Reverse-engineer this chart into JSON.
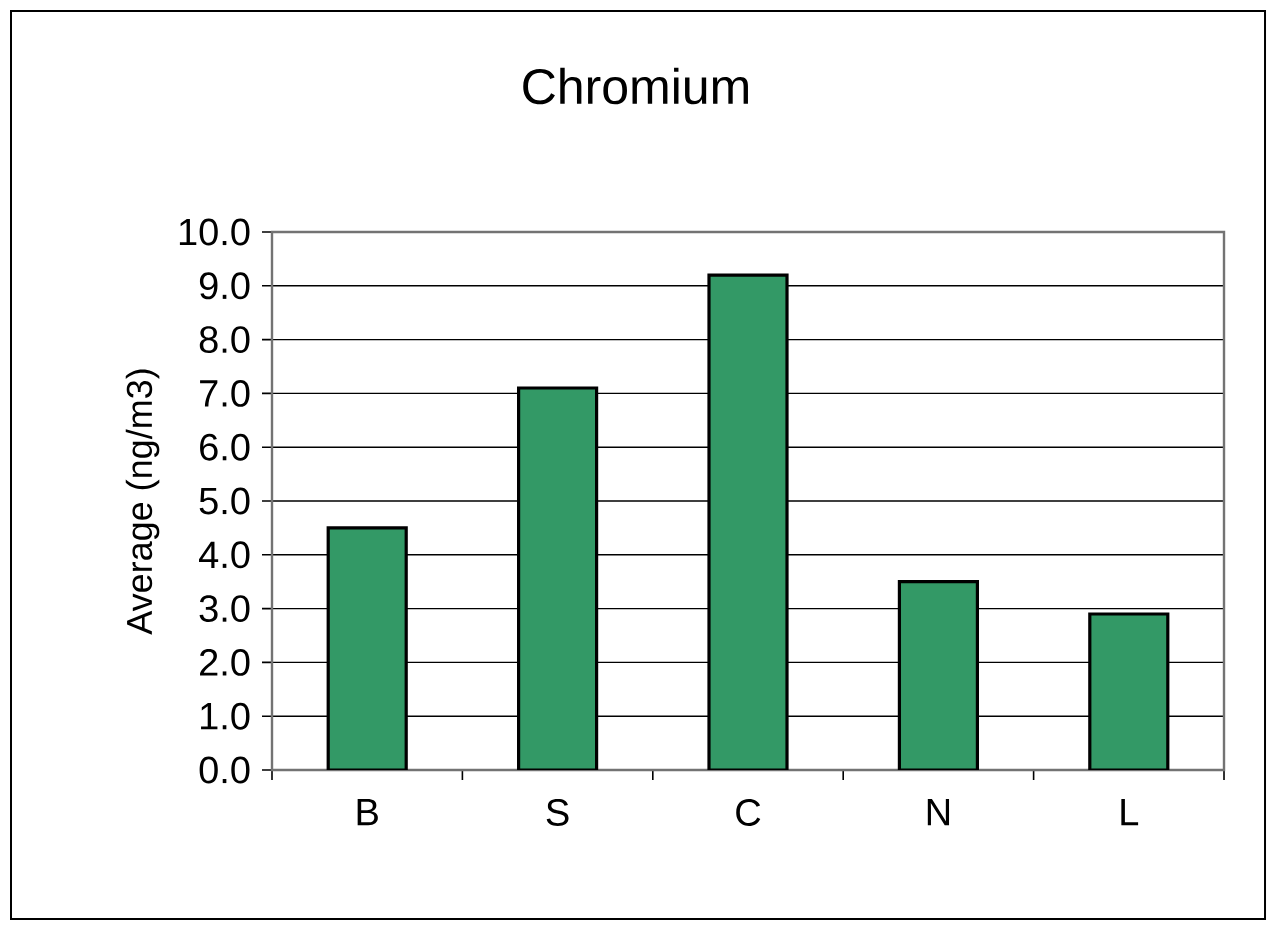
{
  "chart_data": {
    "type": "bar",
    "title": "Chromium",
    "ylabel": "Average (ng/m3)",
    "categories": [
      "B",
      "S",
      "C",
      "N",
      "L"
    ],
    "values": [
      4.5,
      7.1,
      9.2,
      3.5,
      2.9
    ],
    "color": "#339966",
    "ylim": [
      0,
      10
    ],
    "yticks": [
      {
        "value": 0,
        "label": "0.0"
      },
      {
        "value": 1,
        "label": "1.0"
      },
      {
        "value": 2,
        "label": "2.0"
      },
      {
        "value": 3,
        "label": "3.0"
      },
      {
        "value": 4,
        "label": "4.0"
      },
      {
        "value": 5,
        "label": "5.0"
      },
      {
        "value": 6,
        "label": "6.0"
      },
      {
        "value": 7,
        "label": "7.0"
      },
      {
        "value": 8,
        "label": "8.0"
      },
      {
        "value": 9,
        "label": "9.0"
      },
      {
        "value": 10,
        "label": "10.0"
      }
    ],
    "grid": "y"
  }
}
